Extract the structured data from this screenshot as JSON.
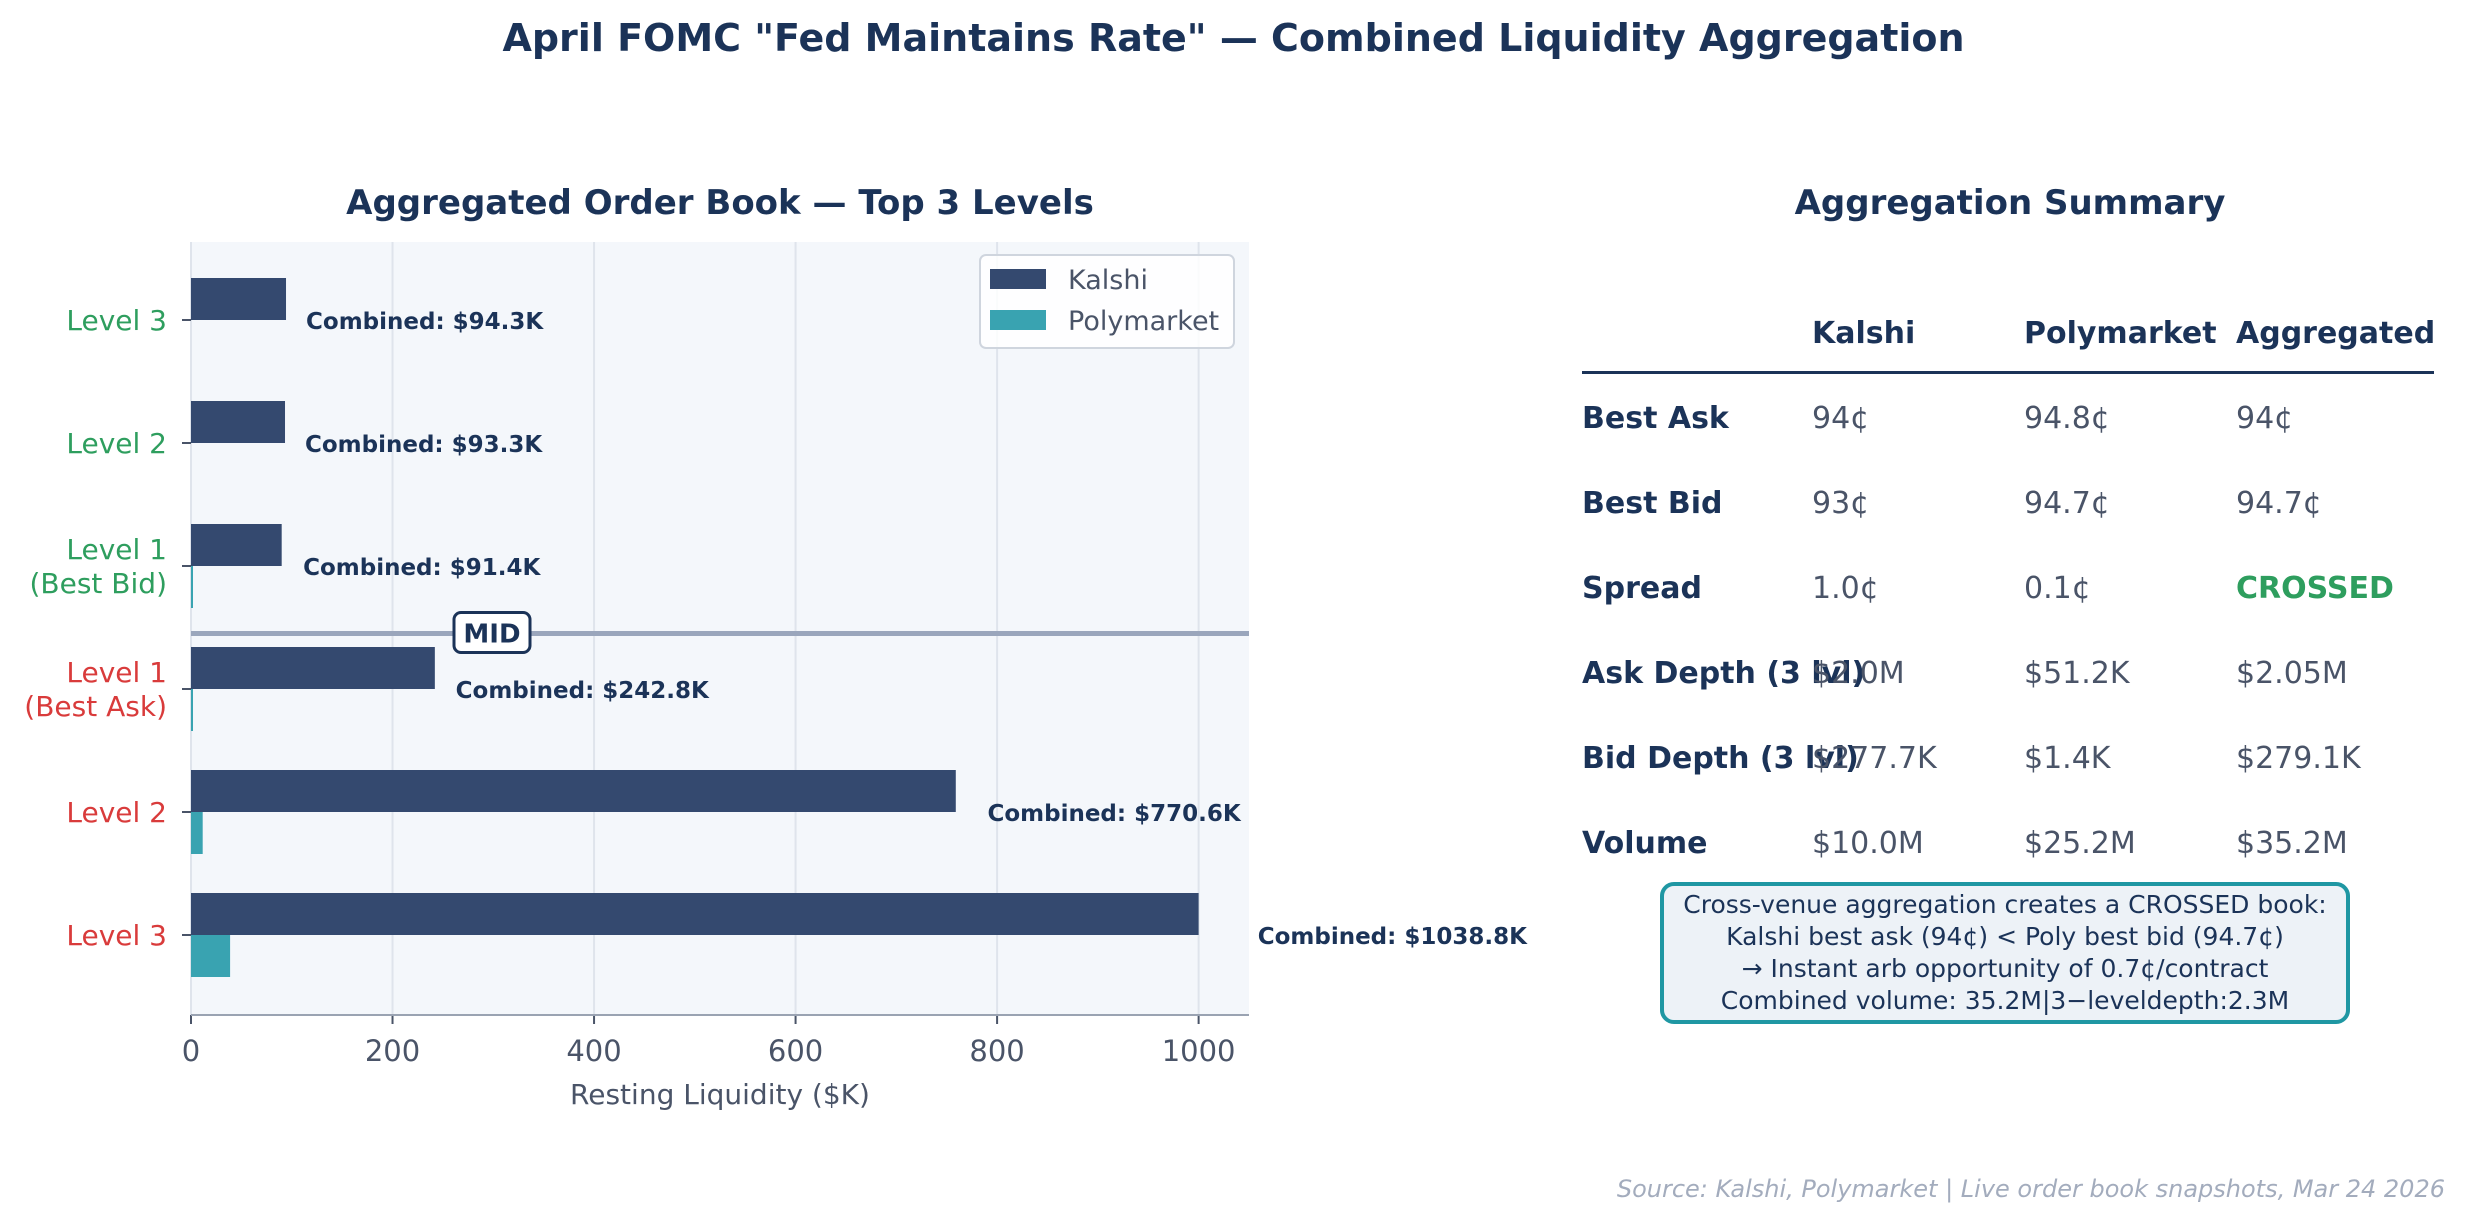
{
  "title": "April FOMC \"Fed Maintains Rate\" — Combined Liquidity Aggregation",
  "colors": {
    "kalshi": "#34496f",
    "polymarket": "#39a3b1",
    "bid_label": "#2e9e5e",
    "ask_label": "#d93b3b",
    "navy": "#1b3358",
    "plot_bg": "#f4f7fb",
    "note_border": "#1f97a3"
  },
  "chart_data": {
    "type": "bar",
    "orientation": "horizontal",
    "title": "Aggregated Order Book — Top 3 Levels",
    "xlabel": "Resting Liquidity ($K)",
    "ylabel": "",
    "xlim": [
      0,
      1050
    ],
    "xticks": [
      "0",
      "200",
      "400",
      "600",
      "800",
      "1000"
    ],
    "grid": true,
    "legend_position": "top-right",
    "mid_label": "MID",
    "categories": [
      {
        "label": "Level 3",
        "side": "bid"
      },
      {
        "label": "Level 2",
        "side": "bid"
      },
      {
        "label": "Level 1\n(Best Bid)",
        "side": "bid"
      },
      {
        "label": "Level 1\n(Best Ask)",
        "side": "ask"
      },
      {
        "label": "Level 2",
        "side": "ask"
      },
      {
        "label": "Level 3",
        "side": "ask"
      }
    ],
    "series": [
      {
        "name": "Kalshi",
        "values": [
          94.3,
          93.3,
          90.0,
          242.0,
          759.0,
          1000.0
        ]
      },
      {
        "name": "Polymarket",
        "values": [
          0,
          0,
          1.4,
          0.8,
          11.6,
          38.8
        ]
      }
    ],
    "annotations": [
      "Combined: $94.3K",
      "Combined: $93.3K",
      "Combined: $91.4K",
      "Combined: $242.8K",
      "Combined: $770.6K",
      "Combined: $1038.8K"
    ]
  },
  "summary": {
    "title": "Aggregation Summary",
    "columns": [
      "Kalshi",
      "Polymarket",
      "Aggregated"
    ],
    "rows": [
      {
        "label": "Best Ask",
        "values": [
          "94¢",
          "94.8¢",
          "94¢"
        ]
      },
      {
        "label": "Best Bid",
        "values": [
          "93¢",
          "94.7¢",
          "94.7¢"
        ]
      },
      {
        "label": "Spread",
        "values": [
          "1.0¢",
          "0.1¢",
          "CROSSED"
        ]
      },
      {
        "label": "Ask Depth (3 lvl)",
        "values": [
          "$2.0M",
          "$51.2K",
          "$2.05M"
        ]
      },
      {
        "label": "Bid Depth (3 lvl)",
        "values": [
          "$277.7K",
          "$1.4K",
          "$279.1K"
        ]
      },
      {
        "label": "Volume",
        "values": [
          "$10.0M",
          "$25.2M",
          "$35.2M"
        ]
      }
    ]
  },
  "note": {
    "line1": "Cross-venue aggregation creates a CROSSED book:",
    "line2": "Kalshi best ask (94¢) < Poly best bid (94.7¢)",
    "line3": "→ Instant arb opportunity of 0.7¢/contract",
    "line4": "Combined volume: 35.2M|3−leveldepth:2.3M"
  },
  "source": "Source: Kalshi, Polymarket  |  Live order book snapshots, Mar 24 2026"
}
